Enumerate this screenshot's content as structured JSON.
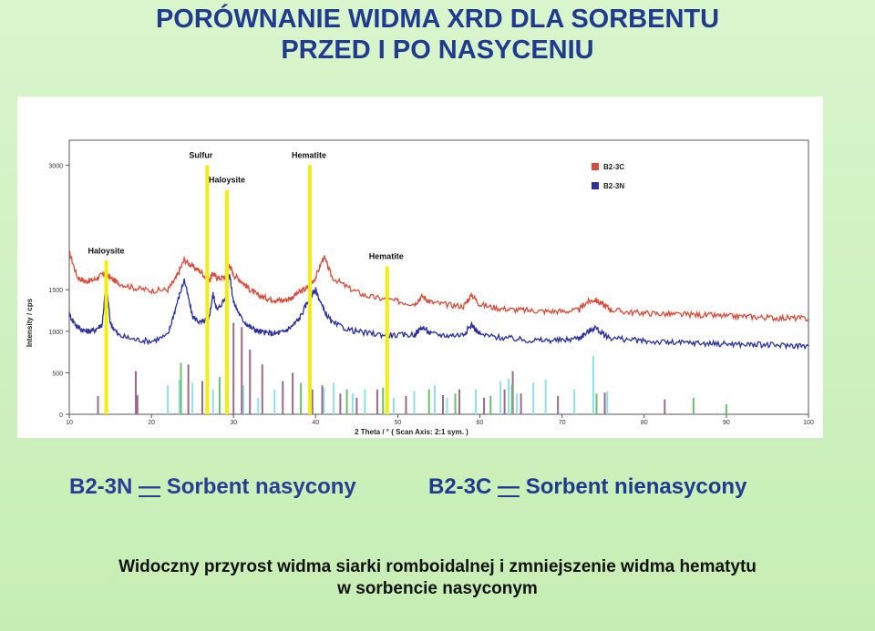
{
  "title": {
    "line1": "PORÓWNANIE WIDMA XRD DLA SORBENTU",
    "line2": "PRZED I PO NASYCENIU"
  },
  "legend_text": {
    "n_code": "B2-3N",
    "n_dash": "—",
    "n_desc": "Sorbent nasycony",
    "c_code": "B2-3C",
    "c_dash": "—",
    "c_desc": "Sorbent nienasycony"
  },
  "note": {
    "line1": "Widoczny przyrost widma siarki romboidalnej i zmniejszenie widma hematytu",
    "line2": "w sorbencie nasyconym"
  },
  "colors": {
    "series_c": "#d94b3a",
    "series_n": "#2a2fa0",
    "marker": "#f2ee10",
    "stick_cyan": "#8fe0ea",
    "stick_purple": "#9a6a8a",
    "stick_green": "#6bbf6a"
  },
  "chart_data": {
    "type": "line",
    "title": "",
    "xlabel": "2 Theta / °  ( Scan Axis: 2:1 sym. )",
    "ylabel": "Intensity / cps",
    "xlim": [
      10,
      100
    ],
    "ylim": [
      0,
      3300
    ],
    "x_ticks": [
      "10",
      "20",
      "30",
      "40",
      "50",
      "60",
      "70",
      "80",
      "90",
      "100"
    ],
    "y_ticks": [
      "0",
      "500",
      "1000",
      "1500",
      "3000"
    ],
    "legend": [
      "B2-3C",
      "B2-3N"
    ],
    "legend_position": "top-right",
    "series": [
      {
        "name": "B2-3C",
        "x": [
          10,
          11,
          12,
          13,
          14,
          14.5,
          15,
          16,
          18,
          20,
          22,
          23,
          24,
          25,
          26,
          27,
          27.5,
          28,
          29,
          29.5,
          30,
          31,
          32,
          33,
          34,
          35,
          36,
          37,
          38,
          39,
          40,
          41,
          42,
          44,
          46,
          48,
          50,
          52,
          53,
          54,
          56,
          58,
          59,
          60,
          62,
          64,
          66,
          68,
          70,
          72,
          73,
          74,
          75,
          76,
          78,
          80,
          82,
          84,
          86,
          88,
          90,
          92,
          94,
          96,
          98,
          100
        ],
        "y": [
          1950,
          1650,
          1600,
          1620,
          1680,
          1700,
          1640,
          1580,
          1520,
          1490,
          1500,
          1640,
          1860,
          1780,
          1720,
          1600,
          1700,
          1640,
          1650,
          1800,
          1680,
          1600,
          1500,
          1430,
          1400,
          1380,
          1370,
          1400,
          1470,
          1520,
          1650,
          1900,
          1650,
          1520,
          1430,
          1390,
          1360,
          1330,
          1420,
          1350,
          1320,
          1300,
          1440,
          1320,
          1280,
          1260,
          1250,
          1240,
          1240,
          1250,
          1350,
          1380,
          1320,
          1260,
          1230,
          1220,
          1210,
          1200,
          1200,
          1190,
          1180,
          1180,
          1170,
          1160,
          1160,
          1150
        ]
      },
      {
        "name": "B2-3N",
        "x": [
          10,
          11,
          12,
          13,
          14,
          14.5,
          15,
          16,
          18,
          20,
          22,
          23,
          24,
          25,
          26,
          27,
          27.5,
          28,
          29,
          29.5,
          30,
          31,
          32,
          33,
          34,
          35,
          36,
          37,
          38,
          39,
          40,
          41,
          42,
          44,
          46,
          48,
          50,
          52,
          53,
          54,
          56,
          58,
          59,
          60,
          62,
          64,
          66,
          68,
          70,
          72,
          73,
          74,
          75,
          76,
          78,
          80,
          82,
          84,
          86,
          88,
          90,
          92,
          94,
          96,
          98,
          100
        ],
        "y": [
          1200,
          1050,
          1000,
          1010,
          1080,
          1600,
          1100,
          950,
          900,
          880,
          950,
          1300,
          1620,
          1180,
          1100,
          1150,
          1450,
          1250,
          1400,
          1700,
          1350,
          1150,
          1050,
          1000,
          980,
          970,
          990,
          1050,
          1150,
          1350,
          1500,
          1250,
          1100,
          1020,
          980,
          960,
          950,
          960,
          1050,
          970,
          950,
          960,
          1080,
          960,
          930,
          910,
          890,
          890,
          890,
          920,
          980,
          1050,
          960,
          920,
          900,
          880,
          870,
          860,
          860,
          850,
          850,
          840,
          840,
          830,
          830,
          820
        ]
      }
    ],
    "phase_markers": [
      {
        "label": "Haloysite",
        "x": 14.5,
        "height": 1850
      },
      {
        "label": "Sulfur",
        "x": 26.8,
        "height": 3000
      },
      {
        "label": "Haloysite",
        "x": 29.2,
        "height": 2700
      },
      {
        "label": "Hematite",
        "x": 39.3,
        "height": 3000
      },
      {
        "label": "Hematite",
        "x": 48.7,
        "height": 1780
      }
    ],
    "reference_sticks_cyan": [
      {
        "x": 22.0,
        "h": 350
      },
      {
        "x": 23.4,
        "h": 420
      },
      {
        "x": 25.0,
        "h": 380
      },
      {
        "x": 27.5,
        "h": 300
      },
      {
        "x": 31.2,
        "h": 350
      },
      {
        "x": 33.0,
        "h": 200
      },
      {
        "x": 35.0,
        "h": 300
      },
      {
        "x": 41.0,
        "h": 320
      },
      {
        "x": 42.2,
        "h": 380
      },
      {
        "x": 44.5,
        "h": 250
      },
      {
        "x": 46.0,
        "h": 300
      },
      {
        "x": 49.5,
        "h": 200
      },
      {
        "x": 52.0,
        "h": 280
      },
      {
        "x": 54.5,
        "h": 350
      },
      {
        "x": 56.0,
        "h": 200
      },
      {
        "x": 59.5,
        "h": 300
      },
      {
        "x": 62.5,
        "h": 400
      },
      {
        "x": 63.5,
        "h": 430
      },
      {
        "x": 64.5,
        "h": 250
      },
      {
        "x": 66.5,
        "h": 380
      },
      {
        "x": 68.0,
        "h": 420
      },
      {
        "x": 71.5,
        "h": 300
      },
      {
        "x": 73.8,
        "h": 700
      },
      {
        "x": 75.5,
        "h": 280
      }
    ],
    "reference_sticks_purple": [
      {
        "x": 13.5,
        "h": 220
      },
      {
        "x": 18.1,
        "h": 520
      },
      {
        "x": 18.3,
        "h": 230
      },
      {
        "x": 24.5,
        "h": 600
      },
      {
        "x": 26.2,
        "h": 400
      },
      {
        "x": 30.0,
        "h": 1100
      },
      {
        "x": 31.0,
        "h": 1050
      },
      {
        "x": 32.0,
        "h": 780
      },
      {
        "x": 33.5,
        "h": 600
      },
      {
        "x": 36.0,
        "h": 400
      },
      {
        "x": 37.2,
        "h": 500
      },
      {
        "x": 39.6,
        "h": 300
      },
      {
        "x": 40.8,
        "h": 350
      },
      {
        "x": 43.0,
        "h": 250
      },
      {
        "x": 45.0,
        "h": 200
      },
      {
        "x": 47.5,
        "h": 300
      },
      {
        "x": 51.0,
        "h": 220
      },
      {
        "x": 55.5,
        "h": 230
      },
      {
        "x": 57.5,
        "h": 300
      },
      {
        "x": 60.5,
        "h": 200
      },
      {
        "x": 63.0,
        "h": 300
      },
      {
        "x": 64.0,
        "h": 520
      },
      {
        "x": 65.0,
        "h": 250
      },
      {
        "x": 69.5,
        "h": 220
      },
      {
        "x": 75.2,
        "h": 260
      },
      {
        "x": 82.5,
        "h": 180
      }
    ],
    "reference_sticks_green": [
      {
        "x": 23.6,
        "h": 620
      },
      {
        "x": 28.3,
        "h": 450
      },
      {
        "x": 38.2,
        "h": 380
      },
      {
        "x": 43.8,
        "h": 300
      },
      {
        "x": 48.2,
        "h": 320
      },
      {
        "x": 53.8,
        "h": 300
      },
      {
        "x": 57.0,
        "h": 250
      },
      {
        "x": 61.3,
        "h": 220
      },
      {
        "x": 63.9,
        "h": 350
      },
      {
        "x": 74.2,
        "h": 250
      },
      {
        "x": 86.0,
        "h": 200
      },
      {
        "x": 90.0,
        "h": 120
      }
    ]
  }
}
